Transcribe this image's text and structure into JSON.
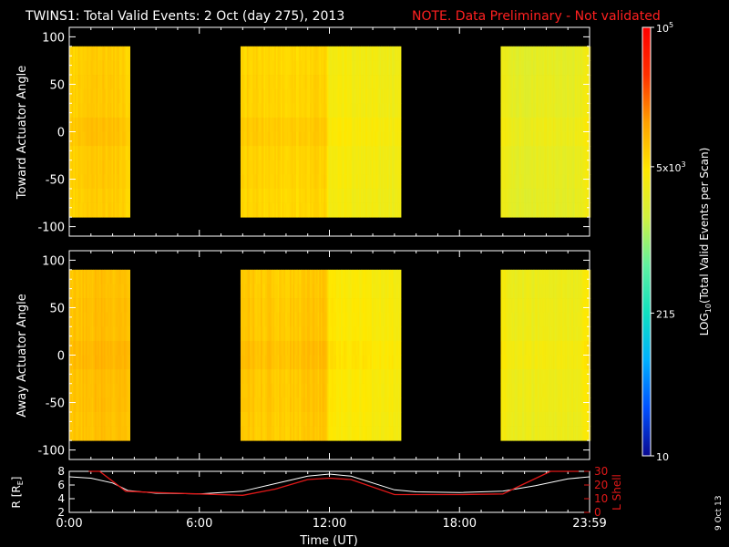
{
  "header": {
    "title": "TWINS1: Total Valid Events:  2 Oct (day 275), 2013",
    "note": "NOTE. Data Preliminary - Not validated"
  },
  "footer": {
    "date_stamp": "9 Oct 13"
  },
  "colors": {
    "note": "#ff2020",
    "axes": "#ffffff",
    "lshell": "#e01818",
    "radius": "#ffffff",
    "background": "#000000"
  },
  "chart_data": [
    {
      "type": "heatmap",
      "name": "toward",
      "ylabel": "Toward Actuator Angle",
      "ylim": [
        -110,
        110
      ],
      "yticks": [
        100,
        50,
        0,
        -50,
        -100
      ],
      "xlim": [
        0,
        24
      ],
      "angle_range": [
        -90,
        90
      ],
      "data_intervals_hours": [
        [
          -0.1,
          2.8
        ],
        [
          7.9,
          15.3
        ],
        [
          19.9,
          24.1
        ]
      ],
      "note": "color = log10 events per scan",
      "log_counts_profile": {
        "hours": [
          0,
          1.5,
          2.8,
          8,
          10,
          11.8,
          12,
          15.3,
          20,
          20.6,
          23.5,
          24
        ],
        "log10": [
          3.82,
          3.86,
          3.82,
          3.8,
          3.78,
          3.8,
          3.58,
          3.52,
          3.52,
          3.42,
          3.45,
          3.6
        ]
      }
    },
    {
      "type": "heatmap",
      "name": "away",
      "ylabel": "Away Actuator Angle",
      "ylim": [
        -110,
        110
      ],
      "yticks": [
        100,
        50,
        0,
        -50,
        -100
      ],
      "xlim": [
        0,
        24
      ],
      "angle_range": [
        -90,
        90
      ],
      "data_intervals_hours": [
        [
          -0.1,
          2.8
        ],
        [
          7.9,
          15.3
        ],
        [
          19.9,
          24.1
        ]
      ],
      "log_counts_profile": {
        "hours": [
          0,
          1.5,
          2.8,
          8,
          10,
          11.8,
          12,
          15.3,
          20,
          20.6,
          23.5,
          24
        ],
        "log10": [
          3.9,
          3.95,
          3.9,
          3.88,
          3.85,
          3.9,
          3.65,
          3.58,
          3.6,
          3.48,
          3.5,
          3.65
        ]
      }
    },
    {
      "type": "line",
      "name": "orbit",
      "ylabel_left": "R [R",
      "ylabel_left_sub": "E",
      "ylabel_left_end": "]",
      "ylabel_right": "L Shell",
      "ylim_left": [
        2,
        8
      ],
      "yticks_left": [
        8,
        6,
        4,
        2
      ],
      "ylim_right": [
        0,
        30
      ],
      "yticks_right": [
        30,
        20,
        10,
        0
      ],
      "xlabel": "Time (UT)",
      "xlim": [
        0,
        24
      ],
      "xticks": [
        0,
        6,
        12,
        18,
        24
      ],
      "xtick_labels": [
        "0:00",
        "6:00",
        "12:00",
        "18:00",
        "23:59"
      ],
      "series": [
        {
          "name": "R",
          "x": [
            0,
            1,
            2,
            2.7,
            4,
            6,
            8,
            9.5,
            11,
            12,
            13,
            15,
            16,
            18,
            20,
            21.5,
            23,
            24
          ],
          "y": [
            7.2,
            7.0,
            6.3,
            5.2,
            4.8,
            4.7,
            5.1,
            6.2,
            7.3,
            7.6,
            7.3,
            5.3,
            5.0,
            4.9,
            5.1,
            5.9,
            6.9,
            7.2
          ]
        },
        {
          "name": "L Shell",
          "x": [
            0.9,
            1.4,
            2.6,
            4,
            6,
            8,
            9.5,
            11,
            12,
            13,
            15,
            16,
            18,
            20,
            21,
            22.2,
            23.5
          ],
          "y": [
            33,
            30,
            15.5,
            14.5,
            13.5,
            12.5,
            17,
            24,
            25,
            24,
            13,
            13,
            13,
            13.5,
            21,
            30,
            33
          ]
        }
      ]
    }
  ],
  "colorbar": {
    "scale": "log",
    "range": [
      10,
      100000
    ],
    "tick_labels": [
      {
        "value": 100000,
        "base": "10",
        "sup": "5",
        "sub": ""
      },
      {
        "value": 5000,
        "base": "5x10",
        "sup": "3",
        "sub": ""
      },
      {
        "value": 215,
        "base": "215",
        "sup": "",
        "sub": ""
      },
      {
        "value": 10,
        "base": "10",
        "sup": "",
        "sub": ""
      }
    ],
    "label_prefix": "LOG",
    "label_sub": "10",
    "label_rest": "(Total Valid  Events per Scan)",
    "color_stops": [
      "#0a0a90",
      "#0050ff",
      "#00b0ff",
      "#10e0c0",
      "#60f0a0",
      "#d0f040",
      "#ffe800",
      "#ffa000",
      "#ff3000",
      "#ff0000"
    ]
  }
}
